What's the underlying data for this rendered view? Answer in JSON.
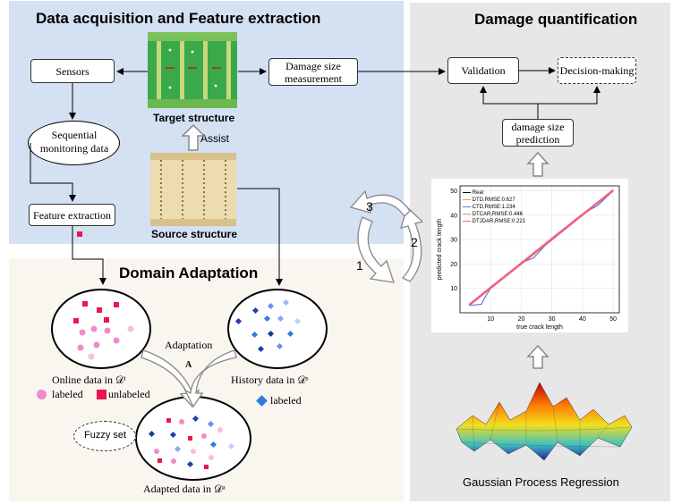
{
  "acquisition": {
    "title": "Data acquisition and Feature extraction",
    "sensors": "Sensors",
    "sequential_data": "Sequential monitoring data",
    "feature_extraction": "Feature extraction",
    "target_structure": "Target structure",
    "source_structure": "Source structure",
    "assist": "Assist",
    "damage_size_measurement": "Damage size measurement"
  },
  "domain": {
    "title": "Domain Adaptation",
    "adaptation": "Adaptation",
    "marker_a": "A",
    "online_data": "Online data in 𝒟ᵗ",
    "history_data": "History data in 𝒟ˢ",
    "adapted_data": "Adapted data in 𝒟ᵃ",
    "labeled": "labeled",
    "unlabeled": "unlabeled",
    "labeled_history": "labeled",
    "fuzzy_set": "Fuzzy set"
  },
  "quantification": {
    "title": "Damage quantification",
    "validation": "Validation",
    "decision_making": "Decision-making",
    "damage_size_prediction": "damage size prediction",
    "gpr": "Gaussian Process Regression"
  },
  "cycle": {
    "step1": "1",
    "step2": "2",
    "step3": "3"
  },
  "colors": {
    "online_circle": "#f18ac8",
    "online_square": "#e8174f",
    "history_diamond": "#2f7de0",
    "panel_blue": "#d4e1f3",
    "panel_beige": "#f8f6ef",
    "panel_grey": "#e7e7e7"
  },
  "chart_data": {
    "type": "line",
    "xlabel": "true crack length",
    "ylabel": "predicted crack length",
    "xlim": [
      0,
      52
    ],
    "ylim": [
      0,
      52
    ],
    "xticks": [
      10,
      20,
      30,
      40,
      50
    ],
    "yticks": [
      10,
      20,
      30,
      40,
      50
    ],
    "grid": true,
    "legend_position": "top-left",
    "series": [
      {
        "name": "Real",
        "color": "#000000",
        "x": [
          3,
          50
        ],
        "y": [
          3,
          50
        ]
      },
      {
        "name": "DTD,RMSE:0.627",
        "color": "#e0a080",
        "x": [
          3,
          10,
          20,
          30,
          40,
          50
        ],
        "y": [
          3.5,
          10.6,
          20.5,
          30.7,
          40.4,
          50.5
        ]
      },
      {
        "name": "CTD,RMSE:1.234",
        "color": "#5b7fd6",
        "x": [
          3,
          7,
          8,
          10,
          20,
          24,
          30,
          40,
          45,
          50
        ],
        "y": [
          3,
          3.5,
          6,
          10,
          20.5,
          22.5,
          30.5,
          40.5,
          44,
          50
        ]
      },
      {
        "name": "DTCAR,RMSE:0.446",
        "color": "#a0c060",
        "x": [
          3,
          10,
          20,
          30,
          38,
          40,
          50
        ],
        "y": [
          3.3,
          10.3,
          20.3,
          30.2,
          38.7,
          40.3,
          50.2
        ]
      },
      {
        "name": "DTJDAR,RMSE:0.221",
        "color": "#f06080",
        "x": [
          3,
          10,
          20,
          30,
          40,
          50
        ],
        "y": [
          3.2,
          10.2,
          20.2,
          30.1,
          40.2,
          50.1
        ]
      }
    ]
  }
}
